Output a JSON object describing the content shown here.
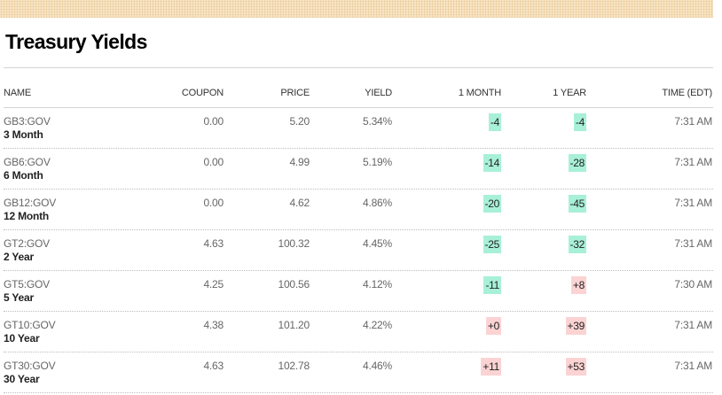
{
  "colors": {
    "down_bg": "#a8f0d8",
    "up_bg": "#fbd3d3",
    "band": "#f9e6c5"
  },
  "title": "Treasury Yields",
  "columns": {
    "name": "NAME",
    "coupon": "COUPON",
    "price": "PRICE",
    "yield": "YIELD",
    "month": "1 MONTH",
    "year": "1 YEAR",
    "time": "TIME (EDT)"
  },
  "rows": [
    {
      "symbol": "GB3:GOV",
      "name": "3 Month",
      "coupon": "0.00",
      "price": "5.20",
      "yield": "5.34%",
      "month": "-4",
      "month_dir": "down",
      "year": "-4",
      "year_dir": "down",
      "time": "7:31 AM"
    },
    {
      "symbol": "GB6:GOV",
      "name": "6 Month",
      "coupon": "0.00",
      "price": "4.99",
      "yield": "5.19%",
      "month": "-14",
      "month_dir": "down",
      "year": "-28",
      "year_dir": "down",
      "time": "7:31 AM"
    },
    {
      "symbol": "GB12:GOV",
      "name": "12 Month",
      "coupon": "0.00",
      "price": "4.62",
      "yield": "4.86%",
      "month": "-20",
      "month_dir": "down",
      "year": "-45",
      "year_dir": "down",
      "time": "7:31 AM"
    },
    {
      "symbol": "GT2:GOV",
      "name": "2 Year",
      "coupon": "4.63",
      "price": "100.32",
      "yield": "4.45%",
      "month": "-25",
      "month_dir": "down",
      "year": "-32",
      "year_dir": "down",
      "time": "7:31 AM"
    },
    {
      "symbol": "GT5:GOV",
      "name": "5 Year",
      "coupon": "4.25",
      "price": "100.56",
      "yield": "4.12%",
      "month": "-11",
      "month_dir": "down",
      "year": "+8",
      "year_dir": "up",
      "time": "7:30 AM"
    },
    {
      "symbol": "GT10:GOV",
      "name": "10 Year",
      "coupon": "4.38",
      "price": "101.20",
      "yield": "4.22%",
      "month": "+0",
      "month_dir": "up",
      "year": "+39",
      "year_dir": "up",
      "time": "7:31 AM"
    },
    {
      "symbol": "GT30:GOV",
      "name": "30 Year",
      "coupon": "4.63",
      "price": "102.78",
      "yield": "4.46%",
      "month": "+11",
      "month_dir": "up",
      "year": "+53",
      "year_dir": "up",
      "time": "7:31 AM"
    }
  ]
}
